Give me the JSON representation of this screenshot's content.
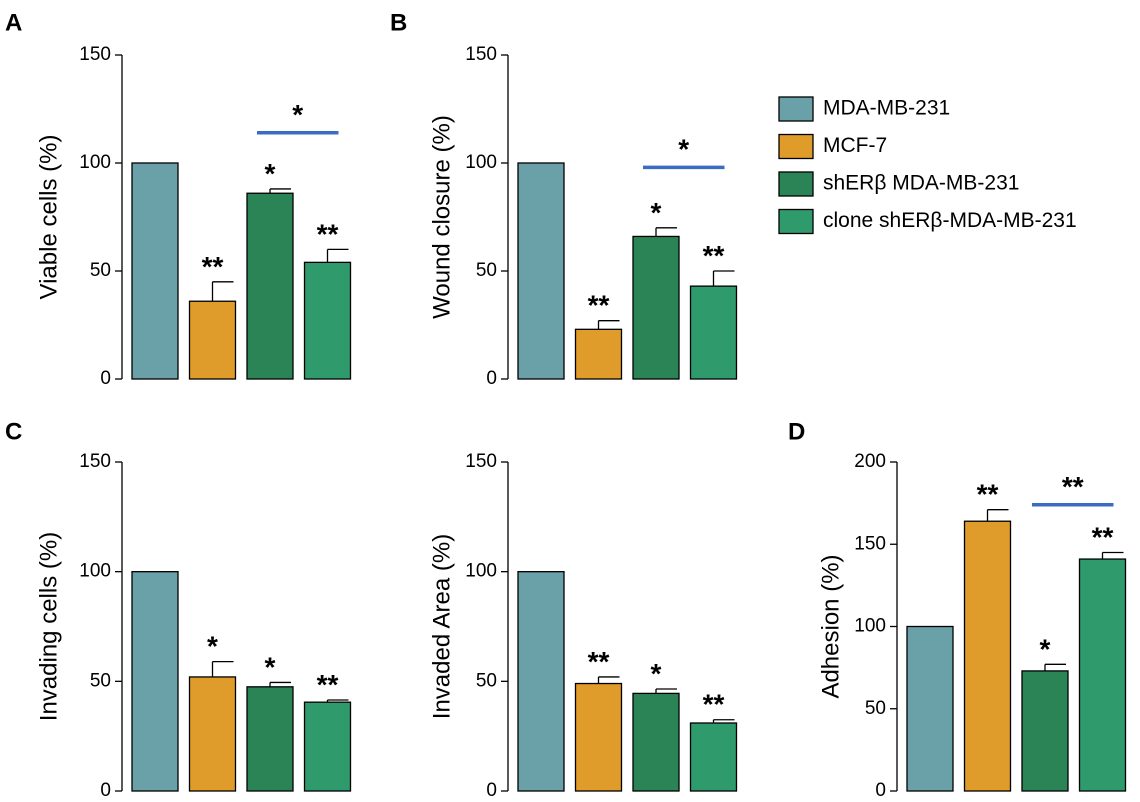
{
  "legend": [
    {
      "label": "MDA-MB-231",
      "color": "#6aa1a8"
    },
    {
      "label": "MCF-7",
      "color": "#e09c2a"
    },
    {
      "label": "shERβ MDA-MB-231",
      "color": "#2b8456"
    },
    {
      "label": "clone shERβ-MDA-MB-231",
      "color": "#2f9a6c"
    }
  ],
  "comparison_color": "#3a6cc4",
  "chart_data": [
    {
      "type": "bar",
      "panel": "A",
      "ylabel": "Viable cells (%)",
      "ylim": [
        0,
        150
      ],
      "yticks": [
        0,
        50,
        100,
        150
      ],
      "categories": [
        "MDA-MB-231",
        "MCF-7",
        "shERβ MDA-MB-231",
        "clone shERβ-MDA-MB-231"
      ],
      "values": [
        100,
        36,
        86,
        54
      ],
      "errors": [
        0,
        9,
        2,
        6
      ],
      "significance": [
        "",
        "**",
        "*",
        "**"
      ],
      "comparison": {
        "from": 2,
        "to": 3,
        "label": "*",
        "y": 114
      }
    },
    {
      "type": "bar",
      "panel": "B",
      "ylabel": "Wound closure (%)",
      "ylim": [
        0,
        150
      ],
      "yticks": [
        0,
        50,
        100,
        150
      ],
      "categories": [
        "MDA-MB-231",
        "MCF-7",
        "shERβ MDA-MB-231",
        "clone shERβ-MDA-MB-231"
      ],
      "values": [
        100,
        23,
        66,
        43
      ],
      "errors": [
        0,
        4,
        4,
        7
      ],
      "significance": [
        "",
        "**",
        "*",
        "**"
      ],
      "comparison": {
        "from": 2,
        "to": 3,
        "label": "*",
        "y": 98
      }
    },
    {
      "type": "bar",
      "panel": "C",
      "ylabel": "Invading cells (%)",
      "ylim": [
        0,
        150
      ],
      "yticks": [
        0,
        50,
        100,
        150
      ],
      "categories": [
        "MDA-MB-231",
        "MCF-7",
        "shERβ MDA-MB-231",
        "clone shERβ-MDA-MB-231"
      ],
      "values": [
        100,
        52,
        47.5,
        40.5
      ],
      "errors": [
        0,
        7,
        2,
        1
      ],
      "significance": [
        "",
        "*",
        "*",
        "**"
      ],
      "comparison": null
    },
    {
      "type": "bar",
      "panel": "",
      "ylabel": "Invaded Area (%)",
      "ylim": [
        0,
        150
      ],
      "yticks": [
        0,
        50,
        100,
        150
      ],
      "categories": [
        "MDA-MB-231",
        "MCF-7",
        "shERβ MDA-MB-231",
        "clone shERβ-MDA-MB-231"
      ],
      "values": [
        100,
        49,
        44.5,
        31
      ],
      "errors": [
        0,
        3,
        2,
        1.5
      ],
      "significance": [
        "",
        "**",
        "*",
        "**"
      ],
      "comparison": null
    },
    {
      "type": "bar",
      "panel": "D",
      "ylabel": "Adhesion (%)",
      "ylim": [
        0,
        200
      ],
      "yticks": [
        0,
        50,
        100,
        150,
        200
      ],
      "categories": [
        "MDA-MB-231",
        "MCF-7",
        "shERβ MDA-MB-231",
        "clone shERβ-MDA-MB-231"
      ],
      "values": [
        100,
        164,
        73,
        141
      ],
      "errors": [
        0,
        7,
        4,
        4
      ],
      "significance": [
        "",
        "**",
        "*",
        "**"
      ],
      "comparison": {
        "from": 2,
        "to": 3,
        "label": "**",
        "y": 174
      }
    }
  ]
}
